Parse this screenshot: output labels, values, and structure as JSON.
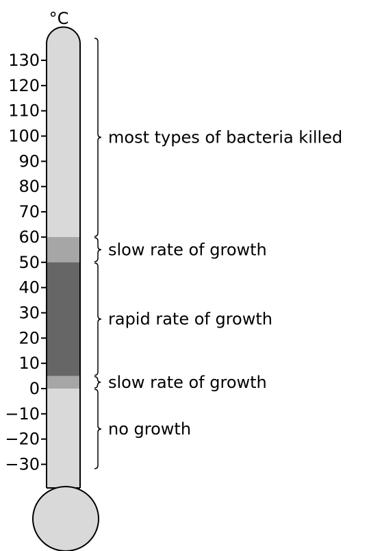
{
  "unit": "°C",
  "scale": {
    "ticks": [
      130,
      120,
      110,
      100,
      90,
      80,
      70,
      60,
      50,
      40,
      30,
      20,
      10,
      0,
      {
        "value": -10,
        "label": "−10"
      },
      {
        "value": -20,
        "label": "−20"
      },
      {
        "value": -30,
        "label": "−30"
      }
    ]
  },
  "bands": [
    {
      "label": "most types of bacteria killed",
      "range": [
        60,
        139
      ]
    },
    {
      "label": "slow rate of growth",
      "range": [
        50,
        60
      ],
      "color": "#a6a6a6"
    },
    {
      "label": "rapid rate of growth",
      "range": [
        5,
        50
      ],
      "color": "#666666"
    },
    {
      "label": "slow rate of growth",
      "range": [
        0,
        5
      ],
      "color": "#a6a6a6"
    },
    {
      "label": "no growth",
      "range": [
        -32,
        0
      ]
    }
  ]
}
